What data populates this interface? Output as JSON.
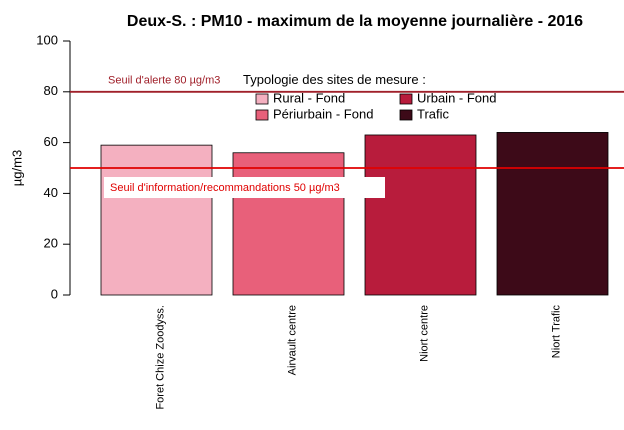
{
  "chart_data": {
    "type": "bar",
    "title": "Deux-S. : PM10 - maximum de la moyenne journalière - 2016",
    "y_label": "µg/m3",
    "categories": [
      "Foret Chize Zoodyss.",
      "Airvault centre",
      "Niort centre",
      "Niort Trafic"
    ],
    "legend_title": "Typologie des sites de mesure :",
    "series": [
      {
        "name": "Rural - Fond",
        "color": "#f4b0c0",
        "values": [
          59,
          null,
          null,
          null
        ]
      },
      {
        "name": "Périurbain - Fond",
        "color": "#e8607a",
        "values": [
          null,
          56,
          null,
          null
        ]
      },
      {
        "name": "Urbain - Fond",
        "color": "#b81c3c",
        "values": [
          null,
          null,
          63,
          null
        ]
      },
      {
        "name": "Trafic",
        "color": "#3d0a18",
        "values": [
          null,
          null,
          null,
          64
        ]
      }
    ],
    "reference_lines": [
      {
        "value": 80,
        "label": "Seuil d'alerte 80 µg/m3",
        "color": "#a0202a"
      },
      {
        "value": 50,
        "label": "Seuil d'information/recommandations 50 µg/m3",
        "color": "#e00000"
      }
    ],
    "ylim": [
      0,
      100
    ],
    "yticks": [
      0,
      20,
      40,
      60,
      80,
      100
    ]
  }
}
